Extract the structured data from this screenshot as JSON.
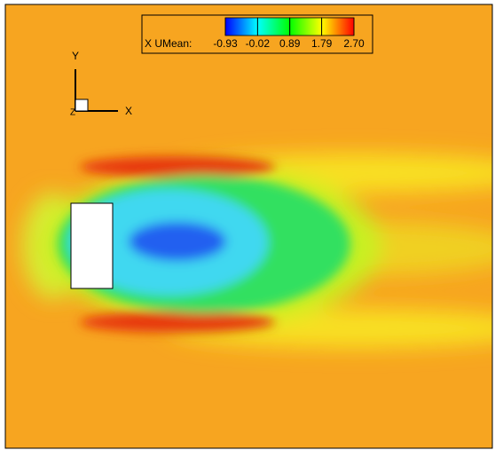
{
  "chart_data": {
    "type": "contour",
    "legend_label": "X UMean:",
    "colormap": [
      "#0000ff",
      "#00ffff",
      "#00ff00",
      "#ffff00",
      "#ff0000"
    ],
    "ticks": [
      -0.93,
      -0.02,
      0.89,
      1.79,
      {
        "value": 2.7,
        "label": "2.70"
      }
    ],
    "axis_labels": {
      "x": "X",
      "y": "Y",
      "z": "Z"
    }
  }
}
